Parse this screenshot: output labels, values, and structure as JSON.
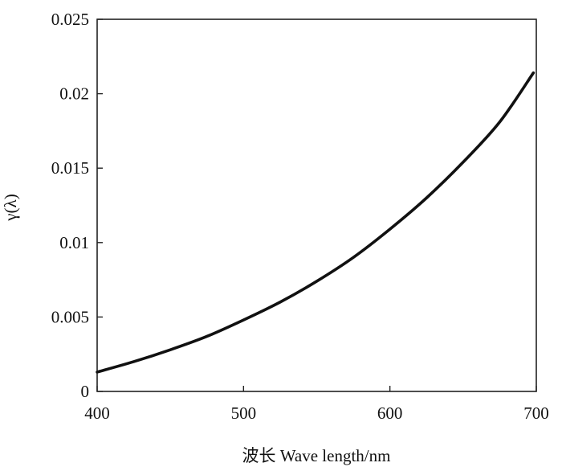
{
  "chart_data": {
    "type": "line",
    "title": "",
    "xlabel": "波长 Wave length/nm",
    "ylabel": "γ(λ)",
    "xlim": [
      400,
      700
    ],
    "ylim": [
      0,
      0.025
    ],
    "grid": false,
    "x_ticks": [
      {
        "value": 400,
        "label": "400"
      },
      {
        "value": 500,
        "label": "500"
      },
      {
        "value": 600,
        "label": "600"
      },
      {
        "value": 700,
        "label": "700"
      }
    ],
    "y_ticks": [
      {
        "value": 0,
        "label": "0"
      },
      {
        "value": 0.005,
        "label": "0.005"
      },
      {
        "value": 0.01,
        "label": "0.01"
      },
      {
        "value": 0.015,
        "label": "0.015"
      },
      {
        "value": 0.02,
        "label": "0.02"
      },
      {
        "value": 0.025,
        "label": "0.025"
      }
    ],
    "series": [
      {
        "color": "#111111",
        "x": [
          400,
          425,
          450,
          475,
          500,
          525,
          550,
          575,
          600,
          625,
          650,
          675,
          698
        ],
        "y": [
          0.0013,
          0.002,
          0.0028,
          0.0037,
          0.0048,
          0.006,
          0.0074,
          0.009,
          0.0109,
          0.013,
          0.0154,
          0.0181,
          0.0214
        ]
      }
    ]
  }
}
